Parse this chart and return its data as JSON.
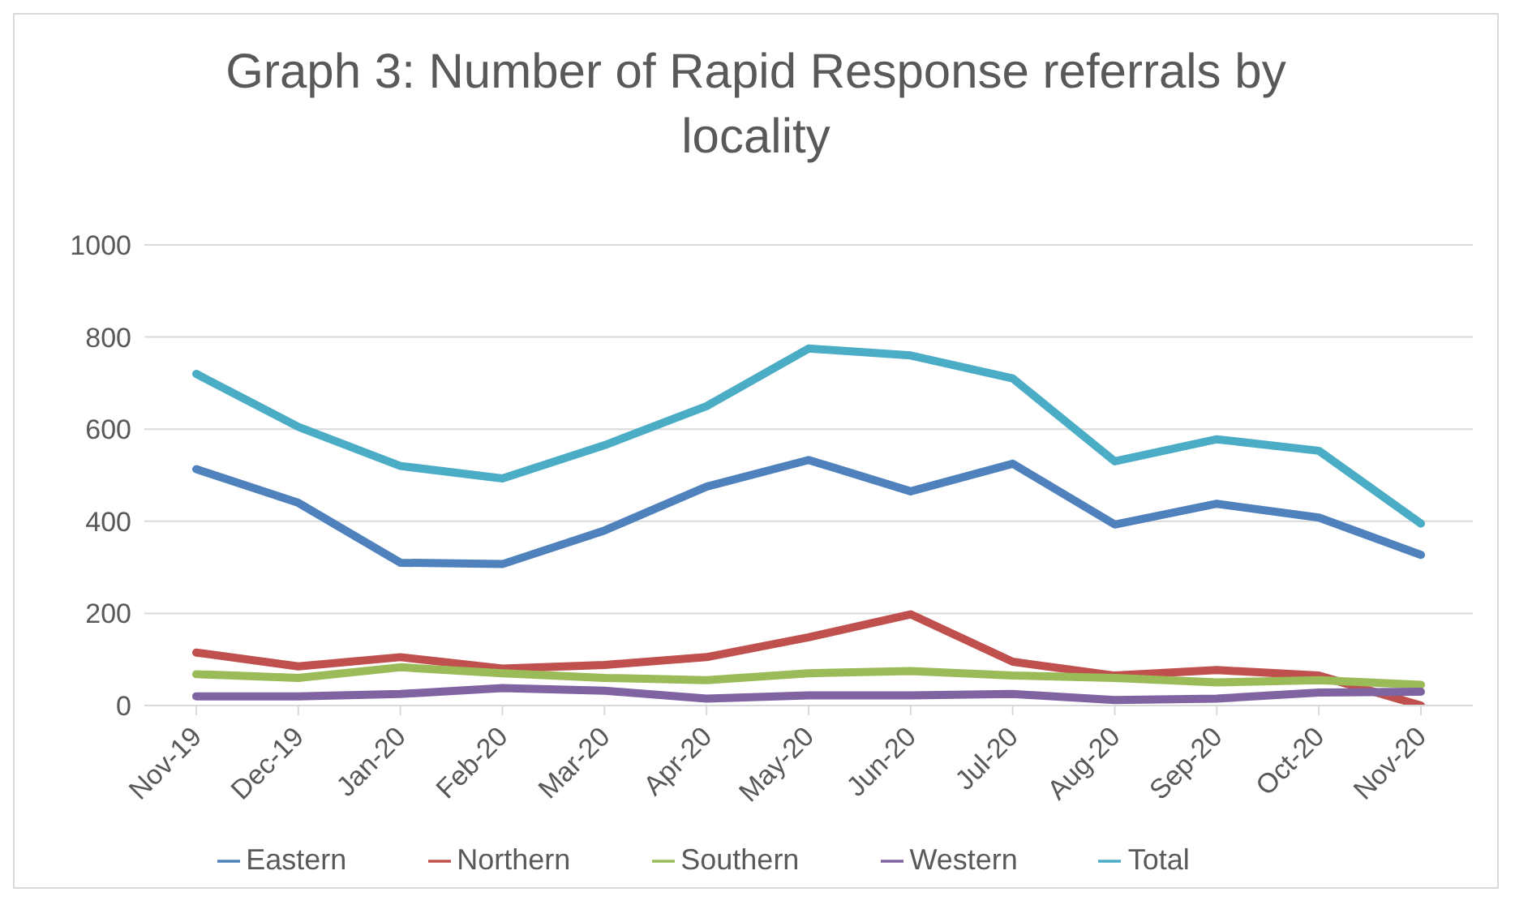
{
  "chart_data": {
    "type": "line",
    "title": "Graph 3: Number of Rapid Response referrals by locality",
    "categories": [
      "Nov-19",
      "Dec-19",
      "Jan-20",
      "Feb-20",
      "Mar-20",
      "Apr-20",
      "May-20",
      "Jun-20",
      "Jul-20",
      "Aug-20",
      "Sep-20",
      "Oct-20",
      "Nov-20"
    ],
    "series": [
      {
        "name": "Eastern",
        "color": "#4f81bd",
        "values": [
          513,
          440,
          310,
          307,
          380,
          475,
          533,
          465,
          525,
          393,
          438,
          408,
          327
        ]
      },
      {
        "name": "Northern",
        "color": "#c0504d",
        "values": [
          115,
          85,
          105,
          80,
          88,
          105,
          148,
          198,
          95,
          65,
          77,
          65,
          0
        ]
      },
      {
        "name": "Southern",
        "color": "#9bbb59",
        "values": [
          68,
          60,
          83,
          70,
          60,
          55,
          70,
          75,
          65,
          60,
          50,
          55,
          45
        ]
      },
      {
        "name": "Western",
        "color": "#8064a2",
        "values": [
          20,
          20,
          25,
          38,
          32,
          15,
          22,
          22,
          25,
          12,
          15,
          28,
          30
        ]
      },
      {
        "name": "Total",
        "color": "#4bacc6",
        "values": [
          720,
          605,
          520,
          493,
          565,
          650,
          775,
          760,
          710,
          530,
          578,
          553,
          395
        ]
      }
    ],
    "ylim": [
      0,
      1000
    ],
    "yticks": [
      0,
      200,
      400,
      600,
      800,
      1000
    ],
    "grid": "y",
    "legend": "bottom",
    "marker": "none",
    "line_style": "solid"
  }
}
